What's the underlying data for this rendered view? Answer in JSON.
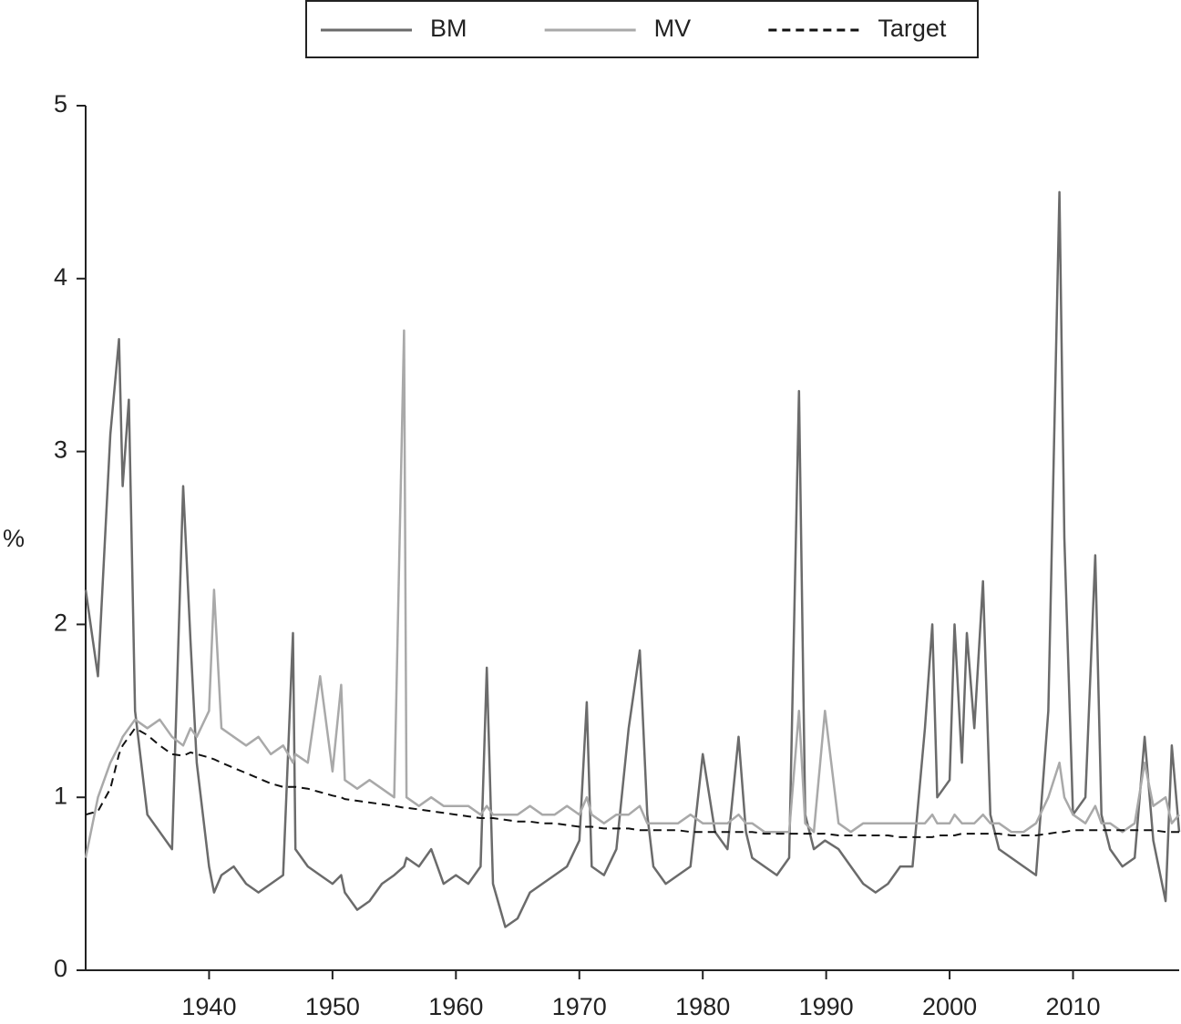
{
  "chart_data": {
    "type": "line",
    "ylabel": "%",
    "x": [
      1930,
      1931,
      1932,
      1932.7,
      1933,
      1933.5,
      1934,
      1935,
      1936,
      1937,
      1937.9,
      1938.5,
      1939,
      1940,
      1940.4,
      1941,
      1942,
      1943,
      1944,
      1945,
      1946,
      1946.8,
      1947,
      1948,
      1949,
      1950,
      1950.7,
      1951,
      1952,
      1953,
      1954,
      1955,
      1955.8,
      1956,
      1957,
      1958,
      1959,
      1960,
      1961,
      1962,
      1962.5,
      1963,
      1964,
      1965,
      1966,
      1967,
      1968,
      1969,
      1970,
      1970.6,
      1971,
      1972,
      1973,
      1974,
      1974.9,
      1975.5,
      1976,
      1977,
      1978,
      1979,
      1980,
      1981,
      1982,
      1982.9,
      1983.5,
      1984,
      1985,
      1986,
      1987,
      1987.8,
      1988.3,
      1989,
      1989.9,
      1991,
      1992,
      1993,
      1994,
      1995,
      1996,
      1997,
      1998,
      1998.6,
      1999,
      2000,
      2000.4,
      2001,
      2001.4,
      2002,
      2002.7,
      2003.3,
      2004,
      2005,
      2006,
      2007,
      2008,
      2008.9,
      2009.3,
      2010,
      2011,
      2011.8,
      2012.3,
      2013,
      2014,
      2015,
      2015.8,
      2016.5,
      2017.5,
      2018,
      2018.6
    ],
    "series": [
      {
        "name": "BM",
        "color": "#6b6b6b",
        "dash": false,
        "values": [
          2.2,
          1.7,
          3.1,
          3.65,
          2.8,
          3.3,
          1.5,
          0.9,
          0.8,
          0.7,
          2.8,
          1.9,
          1.2,
          0.6,
          0.45,
          0.55,
          0.6,
          0.5,
          0.45,
          0.5,
          0.55,
          1.95,
          0.7,
          0.6,
          0.55,
          0.5,
          0.55,
          0.45,
          0.35,
          0.4,
          0.5,
          0.55,
          0.6,
          0.65,
          0.6,
          0.7,
          0.5,
          0.55,
          0.5,
          0.6,
          1.75,
          0.5,
          0.25,
          0.3,
          0.45,
          0.5,
          0.55,
          0.6,
          0.75,
          1.55,
          0.6,
          0.55,
          0.7,
          1.4,
          1.85,
          0.9,
          0.6,
          0.5,
          0.55,
          0.6,
          1.25,
          0.8,
          0.7,
          1.35,
          0.8,
          0.65,
          0.6,
          0.55,
          0.65,
          3.35,
          0.9,
          0.7,
          0.75,
          0.7,
          0.6,
          0.5,
          0.45,
          0.5,
          0.6,
          0.6,
          1.4,
          2.0,
          1.0,
          1.1,
          2.0,
          1.2,
          1.95,
          1.4,
          2.25,
          0.9,
          0.7,
          0.65,
          0.6,
          0.55,
          1.5,
          4.5,
          2.5,
          0.9,
          1.0,
          2.4,
          0.9,
          0.7,
          0.6,
          0.65,
          1.35,
          0.75,
          0.4,
          1.3,
          0.8
        ]
      },
      {
        "name": "MV",
        "color": "#a9a9a9",
        "dash": false,
        "values": [
          0.65,
          1.0,
          1.2,
          1.3,
          1.35,
          1.4,
          1.45,
          1.4,
          1.45,
          1.35,
          1.3,
          1.4,
          1.35,
          1.5,
          2.2,
          1.4,
          1.35,
          1.3,
          1.35,
          1.25,
          1.3,
          1.2,
          1.25,
          1.2,
          1.7,
          1.15,
          1.65,
          1.1,
          1.05,
          1.1,
          1.05,
          1.0,
          3.7,
          1.0,
          0.95,
          1.0,
          0.95,
          0.95,
          0.95,
          0.9,
          0.95,
          0.9,
          0.9,
          0.9,
          0.95,
          0.9,
          0.9,
          0.95,
          0.9,
          1.0,
          0.9,
          0.85,
          0.9,
          0.9,
          0.95,
          0.85,
          0.85,
          0.85,
          0.85,
          0.9,
          0.85,
          0.85,
          0.85,
          0.9,
          0.85,
          0.85,
          0.8,
          0.8,
          0.8,
          1.5,
          0.85,
          0.8,
          1.5,
          0.85,
          0.8,
          0.85,
          0.85,
          0.85,
          0.85,
          0.85,
          0.85,
          0.9,
          0.85,
          0.85,
          0.9,
          0.85,
          0.85,
          0.85,
          0.9,
          0.85,
          0.85,
          0.8,
          0.8,
          0.85,
          1.0,
          1.2,
          1.0,
          0.9,
          0.85,
          0.95,
          0.85,
          0.85,
          0.8,
          0.85,
          1.2,
          0.95,
          1.0,
          0.85,
          0.9
        ]
      },
      {
        "name": "Target",
        "color": "#111111",
        "dash": true,
        "values": [
          0.9,
          0.92,
          1.05,
          1.25,
          1.3,
          1.35,
          1.4,
          1.36,
          1.3,
          1.25,
          1.24,
          1.26,
          1.25,
          1.23,
          1.22,
          1.2,
          1.17,
          1.14,
          1.11,
          1.08,
          1.06,
          1.06,
          1.06,
          1.05,
          1.03,
          1.01,
          1.0,
          0.99,
          0.98,
          0.97,
          0.96,
          0.95,
          0.94,
          0.94,
          0.93,
          0.92,
          0.91,
          0.9,
          0.89,
          0.88,
          0.88,
          0.88,
          0.87,
          0.86,
          0.86,
          0.85,
          0.85,
          0.84,
          0.83,
          0.83,
          0.83,
          0.82,
          0.82,
          0.82,
          0.81,
          0.81,
          0.81,
          0.81,
          0.81,
          0.8,
          0.8,
          0.8,
          0.8,
          0.8,
          0.8,
          0.8,
          0.79,
          0.79,
          0.79,
          0.79,
          0.79,
          0.79,
          0.79,
          0.78,
          0.78,
          0.78,
          0.78,
          0.78,
          0.77,
          0.77,
          0.77,
          0.77,
          0.78,
          0.78,
          0.78,
          0.79,
          0.79,
          0.79,
          0.79,
          0.79,
          0.79,
          0.78,
          0.78,
          0.78,
          0.79,
          0.8,
          0.8,
          0.81,
          0.81,
          0.81,
          0.81,
          0.81,
          0.81,
          0.81,
          0.81,
          0.81,
          0.8,
          0.8,
          0.8
        ]
      }
    ],
    "xlim": [
      1930,
      2018.6
    ],
    "xticks": [
      1940,
      1950,
      1960,
      1970,
      1980,
      1990,
      2000,
      2010
    ],
    "ylim": [
      0,
      5
    ],
    "yticks": [
      0,
      1,
      2,
      3,
      4,
      5
    ],
    "grid": false,
    "legend": "top"
  }
}
